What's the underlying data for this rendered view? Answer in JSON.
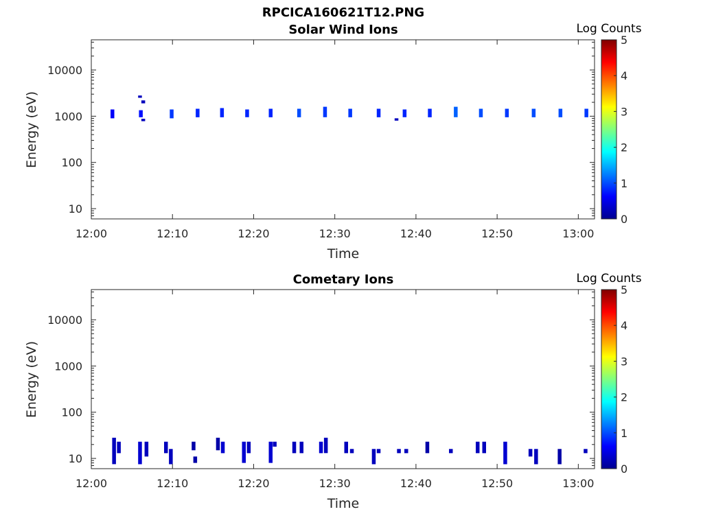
{
  "figure_title": "RPCICA160621T12.PNG",
  "colors": {
    "axis": "#262626",
    "counts_low": "#00008f",
    "counts_mid": "#0040ff"
  },
  "chart_data": [
    {
      "type": "heatmap",
      "title": "Solar Wind Ions",
      "xlabel": "Time",
      "ylabel": "Energy (eV)",
      "yscale": "log",
      "xlim": [
        "12:00",
        "13:02"
      ],
      "ylim": [
        6,
        45000
      ],
      "xticks": [
        "12:00",
        "12:10",
        "12:20",
        "12:30",
        "12:40",
        "12:50",
        "13:00"
      ],
      "yticks": [
        "10",
        "100",
        "1000",
        "10000"
      ],
      "colorbar": {
        "label": "Log Counts",
        "range": [
          0,
          5
        ],
        "ticks": [
          "0",
          "1",
          "2",
          "3",
          "4",
          "5"
        ],
        "colormap": "jet"
      },
      "grid": false,
      "cells": [
        {
          "t": 2.6,
          "e_lo": 900,
          "e_hi": 1400,
          "v": 0.6
        },
        {
          "t": 6.1,
          "e_lo": 950,
          "e_hi": 1350,
          "v": 0.7
        },
        {
          "t": 6.0,
          "e_lo": 2500,
          "e_hi": 2800,
          "v": 0.3
        },
        {
          "t": 6.4,
          "e_lo": 1900,
          "e_hi": 2200,
          "v": 0.3
        },
        {
          "t": 6.4,
          "e_lo": 780,
          "e_hi": 880,
          "v": 0.3
        },
        {
          "t": 9.9,
          "e_lo": 900,
          "e_hi": 1400,
          "v": 0.9
        },
        {
          "t": 13.1,
          "e_lo": 950,
          "e_hi": 1450,
          "v": 0.8
        },
        {
          "t": 16.1,
          "e_lo": 950,
          "e_hi": 1500,
          "v": 0.8
        },
        {
          "t": 19.2,
          "e_lo": 950,
          "e_hi": 1400,
          "v": 0.8
        },
        {
          "t": 22.1,
          "e_lo": 950,
          "e_hi": 1450,
          "v": 0.8
        },
        {
          "t": 25.6,
          "e_lo": 950,
          "e_hi": 1450,
          "v": 1.0
        },
        {
          "t": 28.8,
          "e_lo": 950,
          "e_hi": 1600,
          "v": 0.9
        },
        {
          "t": 31.9,
          "e_lo": 950,
          "e_hi": 1450,
          "v": 0.9
        },
        {
          "t": 35.4,
          "e_lo": 950,
          "e_hi": 1450,
          "v": 0.8
        },
        {
          "t": 37.6,
          "e_lo": 800,
          "e_hi": 900,
          "v": 0.3
        },
        {
          "t": 38.6,
          "e_lo": 950,
          "e_hi": 1400,
          "v": 0.8
        },
        {
          "t": 41.7,
          "e_lo": 950,
          "e_hi": 1450,
          "v": 0.8
        },
        {
          "t": 44.9,
          "e_lo": 950,
          "e_hi": 1600,
          "v": 1.1
        },
        {
          "t": 48.0,
          "e_lo": 950,
          "e_hi": 1450,
          "v": 1.0
        },
        {
          "t": 51.2,
          "e_lo": 950,
          "e_hi": 1450,
          "v": 0.9
        },
        {
          "t": 54.5,
          "e_lo": 950,
          "e_hi": 1450,
          "v": 1.0
        },
        {
          "t": 57.8,
          "e_lo": 950,
          "e_hi": 1450,
          "v": 1.0
        },
        {
          "t": 61.0,
          "e_lo": 950,
          "e_hi": 1450,
          "v": 0.9
        }
      ]
    },
    {
      "type": "heatmap",
      "title": "Cometary Ions",
      "xlabel": "Time",
      "ylabel": "Energy (eV)",
      "yscale": "log",
      "xlim": [
        "12:00",
        "13:02"
      ],
      "ylim": [
        6,
        45000
      ],
      "xticks": [
        "12:00",
        "12:10",
        "12:20",
        "12:30",
        "12:40",
        "12:50",
        "13:00"
      ],
      "yticks": [
        "10",
        "100",
        "1000",
        "10000"
      ],
      "colorbar": {
        "label": "Log Counts",
        "range": [
          0,
          5
        ],
        "ticks": [
          "0",
          "1",
          "2",
          "3",
          "4",
          "5"
        ],
        "colormap": "jet"
      },
      "grid": false,
      "cells": [
        {
          "t": 2.8,
          "e_lo": 7.5,
          "e_hi": 28,
          "v": 0.3
        },
        {
          "t": 3.4,
          "e_lo": 13,
          "e_hi": 23,
          "v": 0.3
        },
        {
          "t": 6.0,
          "e_lo": 7.5,
          "e_hi": 23,
          "v": 0.4
        },
        {
          "t": 6.8,
          "e_lo": 11,
          "e_hi": 23,
          "v": 0.3
        },
        {
          "t": 9.2,
          "e_lo": 13,
          "e_hi": 23,
          "v": 0.3
        },
        {
          "t": 9.8,
          "e_lo": 7.5,
          "e_hi": 16,
          "v": 0.3
        },
        {
          "t": 12.6,
          "e_lo": 15,
          "e_hi": 23,
          "v": 0.2
        },
        {
          "t": 12.8,
          "e_lo": 8,
          "e_hi": 11,
          "v": 0.2
        },
        {
          "t": 15.6,
          "e_lo": 15,
          "e_hi": 28,
          "v": 0.2
        },
        {
          "t": 16.2,
          "e_lo": 13,
          "e_hi": 23,
          "v": 0.4
        },
        {
          "t": 18.8,
          "e_lo": 8,
          "e_hi": 23,
          "v": 0.4
        },
        {
          "t": 19.4,
          "e_lo": 13,
          "e_hi": 23,
          "v": 0.3
        },
        {
          "t": 22.1,
          "e_lo": 8,
          "e_hi": 23,
          "v": 0.4
        },
        {
          "t": 22.6,
          "e_lo": 18,
          "e_hi": 23,
          "v": 0.3
        },
        {
          "t": 25.0,
          "e_lo": 13,
          "e_hi": 23,
          "v": 0.3
        },
        {
          "t": 25.9,
          "e_lo": 13,
          "e_hi": 23,
          "v": 0.3
        },
        {
          "t": 28.3,
          "e_lo": 13,
          "e_hi": 23,
          "v": 0.4
        },
        {
          "t": 28.9,
          "e_lo": 13,
          "e_hi": 28,
          "v": 0.3
        },
        {
          "t": 31.4,
          "e_lo": 13,
          "e_hi": 23,
          "v": 0.3
        },
        {
          "t": 32.1,
          "e_lo": 13,
          "e_hi": 16,
          "v": 0.3
        },
        {
          "t": 34.8,
          "e_lo": 7.5,
          "e_hi": 16,
          "v": 0.3
        },
        {
          "t": 35.4,
          "e_lo": 13,
          "e_hi": 16,
          "v": 0.3
        },
        {
          "t": 37.9,
          "e_lo": 13,
          "e_hi": 16,
          "v": 0.3
        },
        {
          "t": 38.8,
          "e_lo": 13,
          "e_hi": 16,
          "v": 0.3
        },
        {
          "t": 41.4,
          "e_lo": 13,
          "e_hi": 23,
          "v": 0.2
        },
        {
          "t": 44.3,
          "e_lo": 13,
          "e_hi": 16,
          "v": 0.3
        },
        {
          "t": 47.6,
          "e_lo": 13,
          "e_hi": 23,
          "v": 0.3
        },
        {
          "t": 48.4,
          "e_lo": 13,
          "e_hi": 23,
          "v": 0.3
        },
        {
          "t": 51.0,
          "e_lo": 7.5,
          "e_hi": 23,
          "v": 0.4
        },
        {
          "t": 54.1,
          "e_lo": 11,
          "e_hi": 16,
          "v": 0.3
        },
        {
          "t": 54.8,
          "e_lo": 7.5,
          "e_hi": 16,
          "v": 0.3
        },
        {
          "t": 57.7,
          "e_lo": 7.5,
          "e_hi": 16,
          "v": 0.2
        },
        {
          "t": 60.9,
          "e_lo": 13,
          "e_hi": 16,
          "v": 0.3
        }
      ]
    }
  ]
}
